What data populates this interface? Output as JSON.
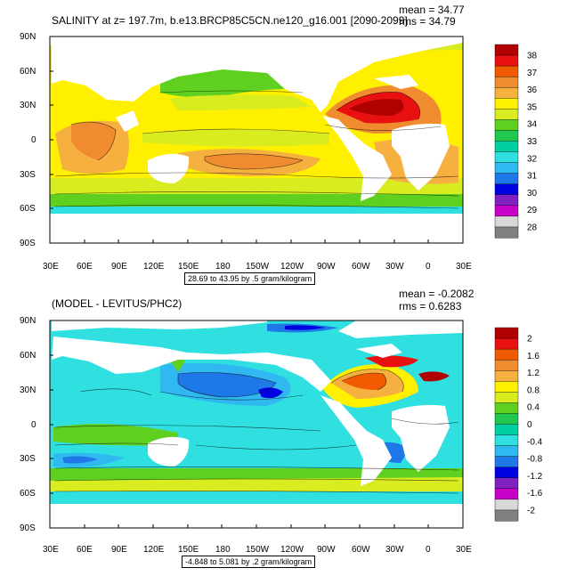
{
  "panel1": {
    "title": "SALINITY at z= 197.7m, b.e13.BRCP85C5CN.ne120_g16.001 [2090-2099]",
    "mean": "mean = 34.77",
    "rms": "rms = 34.79",
    "info": "28.69 to 43.95 by .5 gram/kilogram",
    "lat_labels": [
      "90N",
      "60N",
      "30N",
      "0",
      "30S",
      "60S",
      "90S"
    ],
    "lon_labels": [
      "30E",
      "60E",
      "90E",
      "120E",
      "150E",
      "180",
      "150W",
      "120W",
      "90W",
      "60W",
      "30W",
      "0",
      "30E"
    ],
    "colorbar": {
      "labels": [
        "38",
        "37",
        "36",
        "35",
        "34",
        "33",
        "32",
        "31",
        "30",
        "29",
        "28"
      ],
      "colors": [
        "#b00000",
        "#e81010",
        "#f05a00",
        "#f08c30",
        "#f5b040",
        "#fff000",
        "#d8ec20",
        "#60d020",
        "#20c850",
        "#00d0a0",
        "#30e0e0",
        "#30b8f0",
        "#1e78e8",
        "#0000e0",
        "#8020c0",
        "#c800c8",
        "#d8d8d8",
        "#808080"
      ]
    }
  },
  "panel2": {
    "title": "(MODEL - LEVITUS/PHC2)",
    "mean": "mean = -0.2082",
    "rms": "rms = 0.6283",
    "info": "-4.848 to 5.081 by .2 gram/kilogram",
    "lat_labels": [
      "90N",
      "60N",
      "30N",
      "0",
      "30S",
      "60S",
      "90S"
    ],
    "lon_labels": [
      "30E",
      "60E",
      "90E",
      "120E",
      "150E",
      "180",
      "150W",
      "120W",
      "90W",
      "60W",
      "30W",
      "0",
      "30E"
    ],
    "colorbar": {
      "labels": [
        "2",
        "1.6",
        "1.2",
        "0.8",
        "0.4",
        "0",
        "-0.4",
        "-0.8",
        "-1.2",
        "-1.6",
        "-2"
      ],
      "colors": [
        "#b00000",
        "#e81010",
        "#f05a00",
        "#f08c30",
        "#f5b040",
        "#fff000",
        "#d8ec20",
        "#60d020",
        "#20c850",
        "#00d0a0",
        "#30e0e0",
        "#30b8f0",
        "#1e78e8",
        "#0000e0",
        "#8020c0",
        "#c800c8",
        "#d8d8d8",
        "#808080"
      ]
    }
  }
}
